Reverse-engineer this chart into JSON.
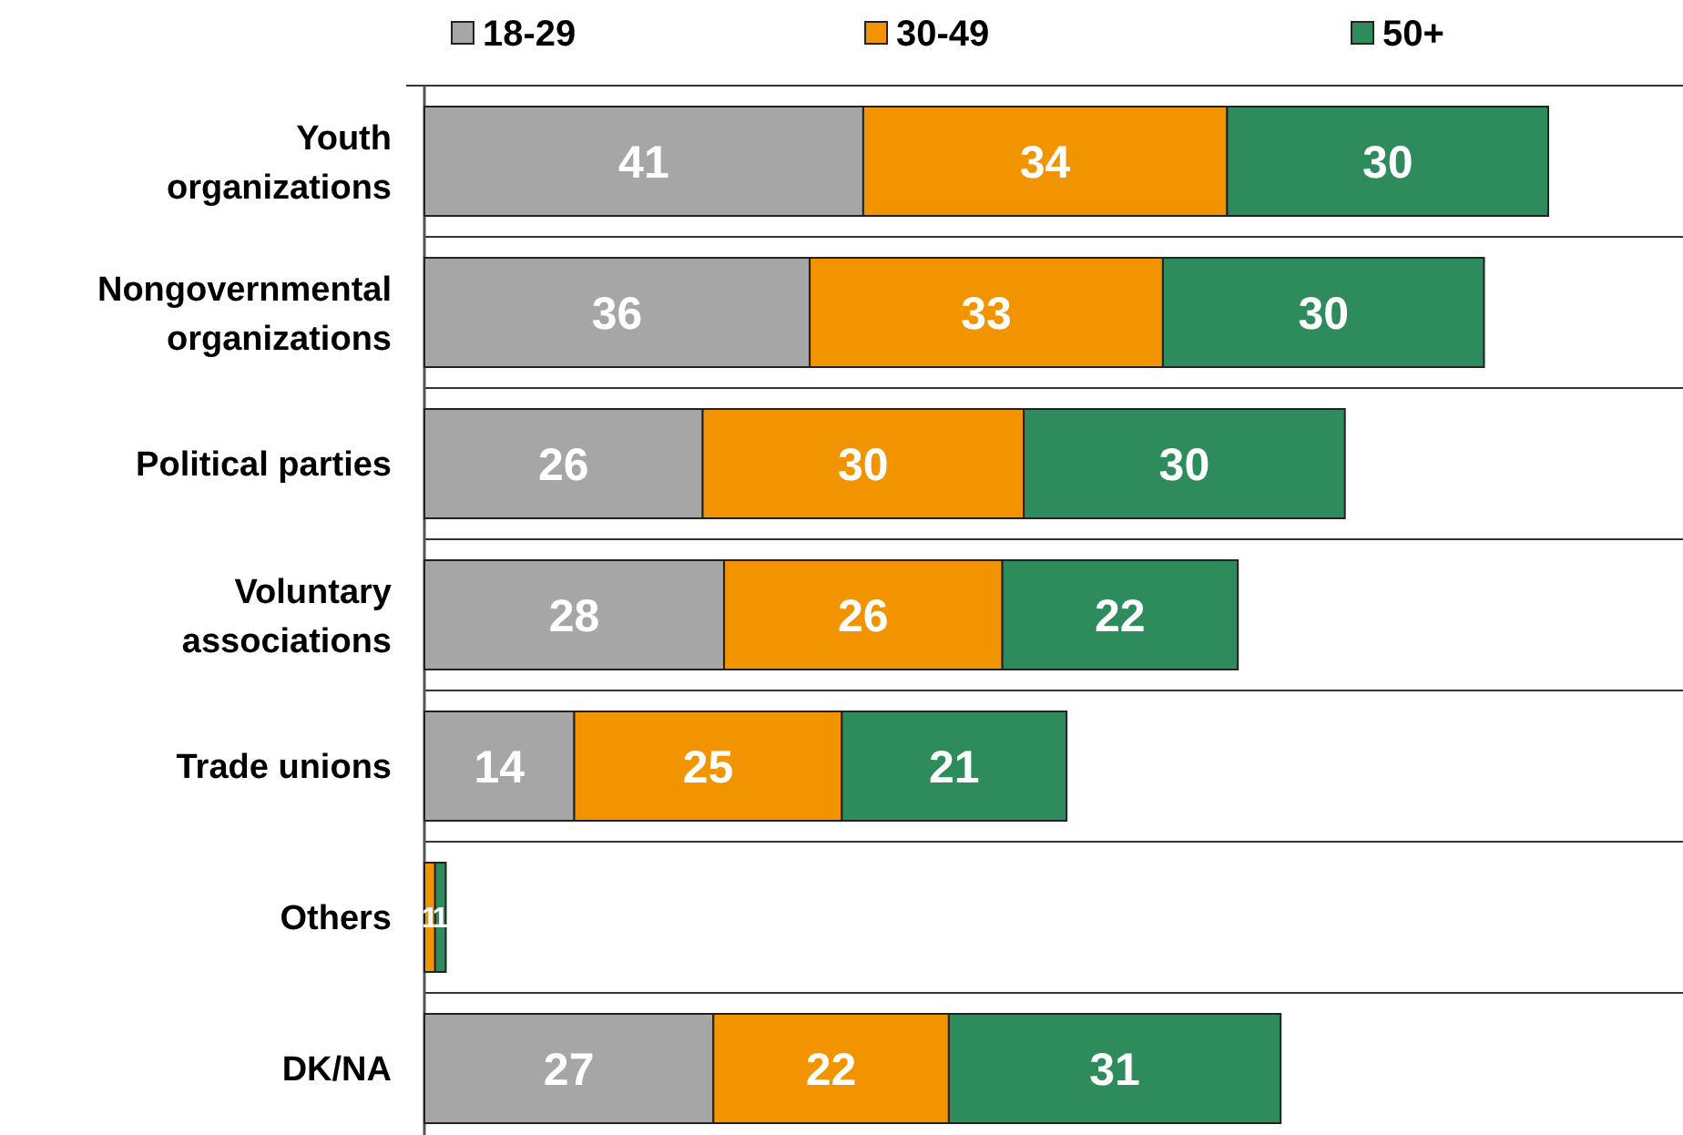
{
  "chart_data": {
    "type": "bar",
    "orientation": "horizontal",
    "stacked": true,
    "legend": "top",
    "categories": [
      "Youth organizations",
      "Nongovernmental organizations",
      "Political parties",
      "Voluntary associations",
      "Trade unions",
      "Others",
      "DK/NA"
    ],
    "series": [
      {
        "name": "18-29",
        "color": "#a6a6a6",
        "values": [
          41,
          36,
          26,
          28,
          14,
          0,
          27
        ],
        "value_labels": [
          "41",
          "36",
          "26",
          "28",
          "14",
          null,
          "27"
        ]
      },
      {
        "name": "30-49",
        "color": "#f29400",
        "values": [
          34,
          33,
          30,
          26,
          25,
          1,
          22
        ],
        "value_labels": [
          "34",
          "33",
          "30",
          "26",
          "25",
          "1",
          "22"
        ]
      },
      {
        "name": "50+",
        "color": "#2e8b5c",
        "values": [
          30,
          30,
          30,
          22,
          21,
          1,
          31
        ],
        "value_labels": [
          "30",
          "30",
          "30",
          "22",
          "21",
          "1",
          "31"
        ]
      }
    ]
  }
}
